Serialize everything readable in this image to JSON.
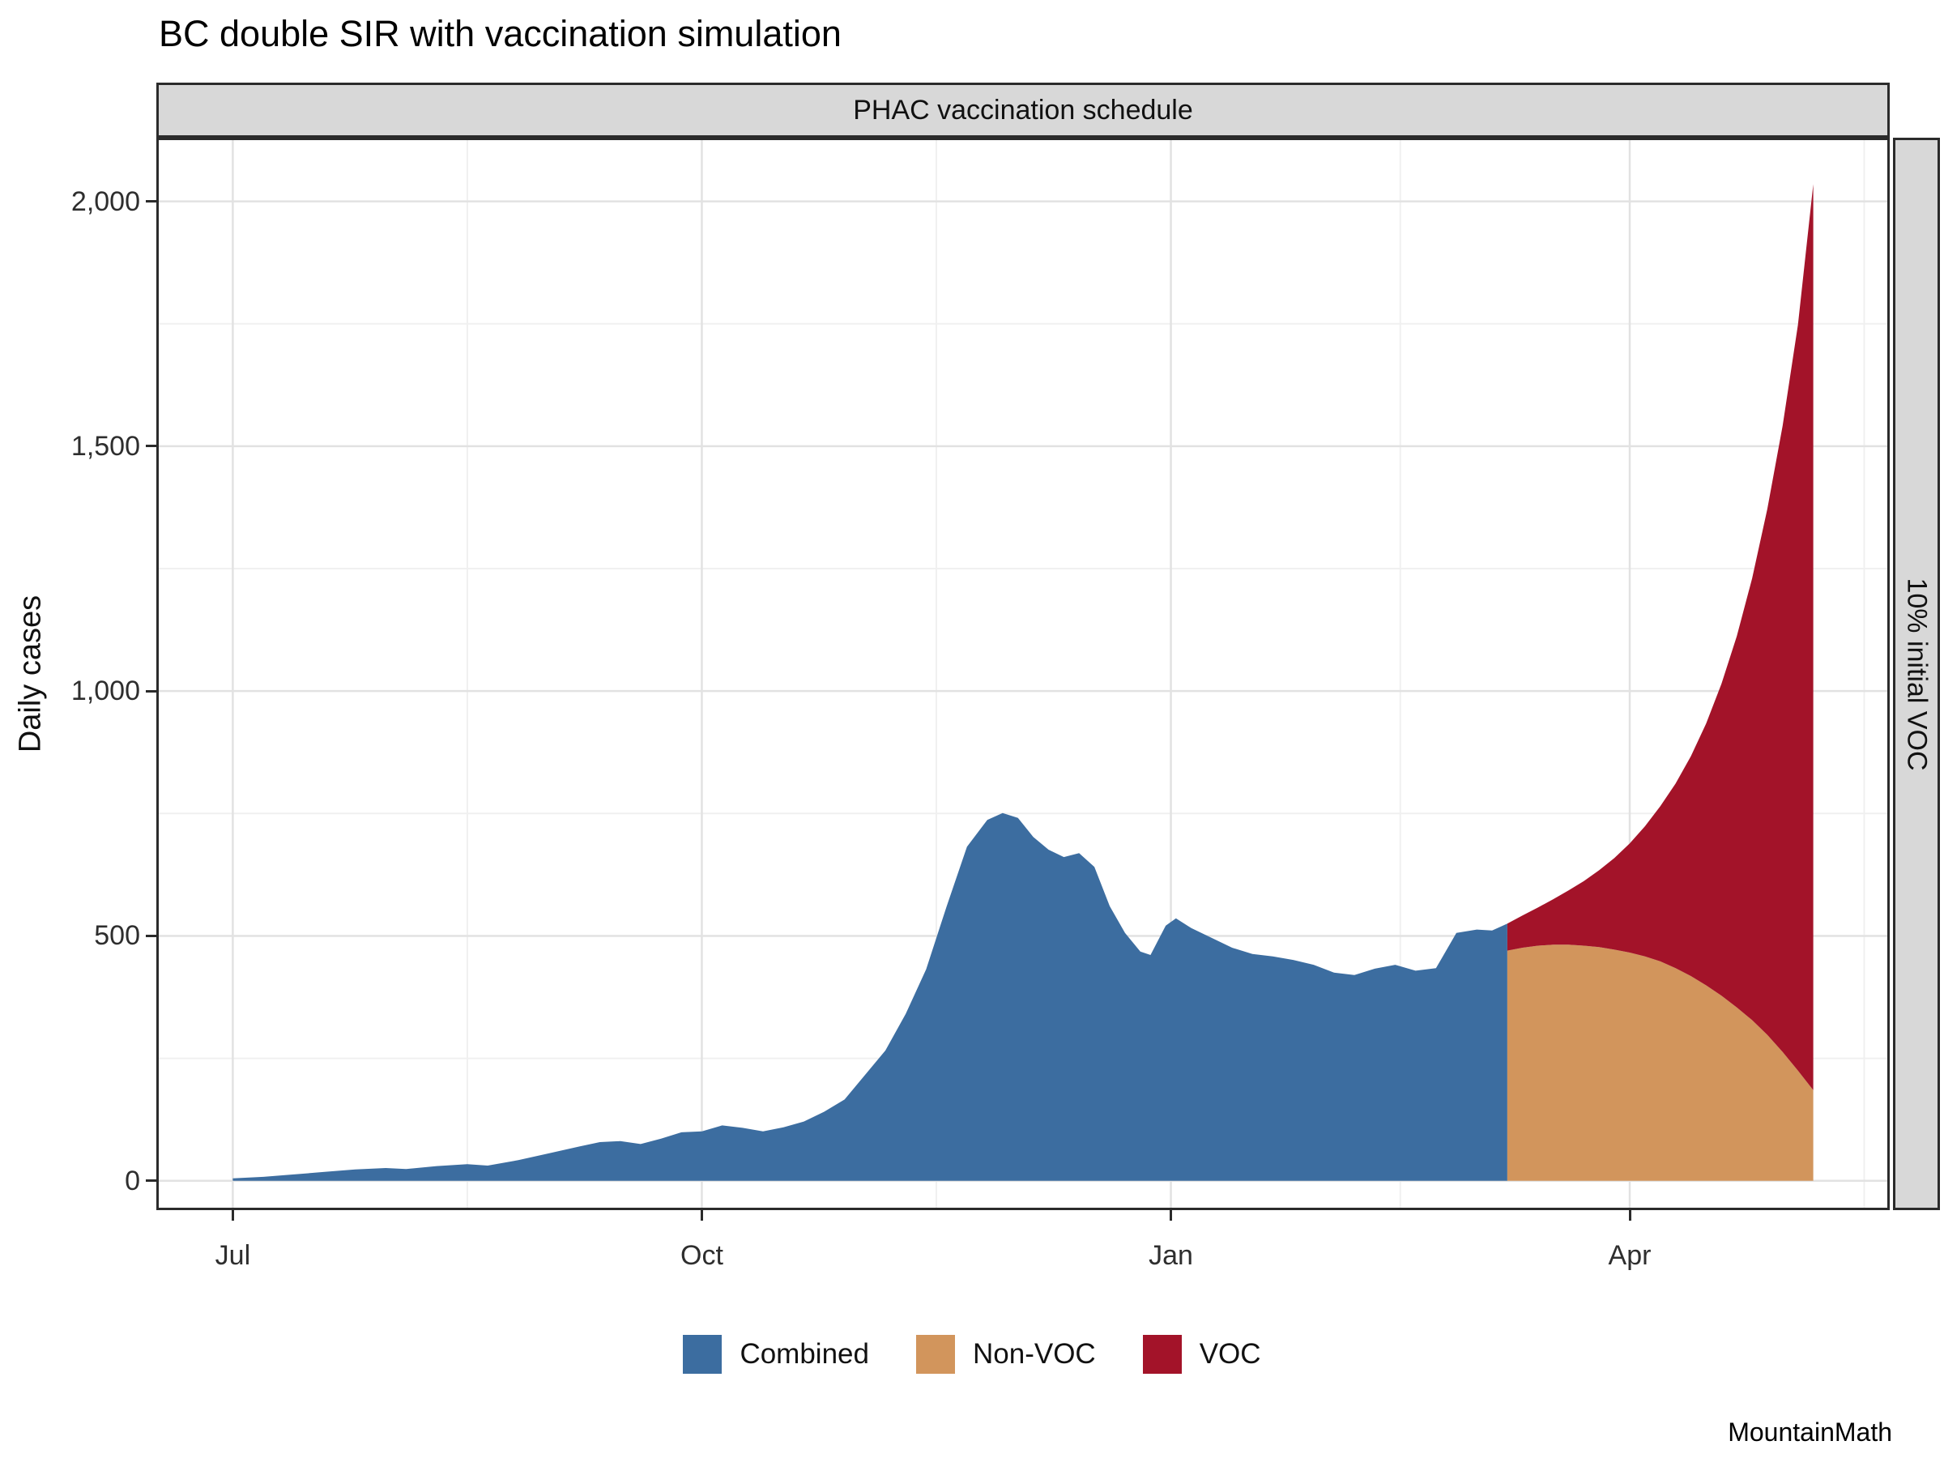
{
  "title": "BC double SIR with vaccination simulation",
  "strips": {
    "top": "PHAC vaccination schedule",
    "right": "10% initial VOC"
  },
  "watermark": "MountainMath",
  "chart_data": {
    "type": "area",
    "title": "BC double SIR with vaccination simulation",
    "xlabel": "",
    "ylabel": "Daily cases",
    "x_unit": "days since Jul 1",
    "x_domain": [
      -15,
      325
    ],
    "y_domain": [
      -60,
      2130
    ],
    "grid": true,
    "legend_position": "bottom",
    "x_ticks": [
      {
        "value": 0,
        "label": "Jul"
      },
      {
        "value": 92,
        "label": "Oct"
      },
      {
        "value": 184,
        "label": "Jan"
      },
      {
        "value": 274,
        "label": "Apr"
      }
    ],
    "y_ticks": [
      {
        "value": 0,
        "label": "0"
      },
      {
        "value": 500,
        "label": "500"
      },
      {
        "value": 1000,
        "label": "1,000"
      },
      {
        "value": 1500,
        "label": "1,500"
      },
      {
        "value": 2000,
        "label": "2,000"
      }
    ],
    "x_minor": [
      46,
      138,
      229,
      320
    ],
    "y_minor": [
      250,
      750,
      1250,
      1750
    ],
    "legend": [
      {
        "name": "Combined",
        "color": "#3C6DA0"
      },
      {
        "name": "Non-VOC",
        "color": "#D2955C"
      },
      {
        "name": "VOC",
        "color": "#A31329"
      }
    ],
    "series": [
      {
        "name": "Combined",
        "color": "#3C6DA0",
        "stack": "base",
        "points": [
          [
            0,
            5
          ],
          [
            6,
            8
          ],
          [
            12,
            13
          ],
          [
            18,
            18
          ],
          [
            24,
            23
          ],
          [
            30,
            26
          ],
          [
            34,
            24
          ],
          [
            40,
            30
          ],
          [
            46,
            34
          ],
          [
            50,
            31
          ],
          [
            56,
            42
          ],
          [
            62,
            56
          ],
          [
            68,
            70
          ],
          [
            72,
            79
          ],
          [
            76,
            81
          ],
          [
            80,
            75
          ],
          [
            84,
            86
          ],
          [
            88,
            99
          ],
          [
            92,
            101
          ],
          [
            96,
            113
          ],
          [
            100,
            108
          ],
          [
            104,
            101
          ],
          [
            108,
            109
          ],
          [
            112,
            121
          ],
          [
            116,
            141
          ],
          [
            120,
            166
          ],
          [
            124,
            216
          ],
          [
            128,
            266
          ],
          [
            132,
            341
          ],
          [
            136,
            432
          ],
          [
            140,
            560
          ],
          [
            144,
            682
          ],
          [
            148,
            737
          ],
          [
            151,
            751
          ],
          [
            154,
            741
          ],
          [
            157,
            702
          ],
          [
            160,
            676
          ],
          [
            163,
            661
          ],
          [
            166,
            669
          ],
          [
            169,
            641
          ],
          [
            172,
            561
          ],
          [
            175,
            506
          ],
          [
            178,
            468
          ],
          [
            180,
            461
          ],
          [
            183,
            521
          ],
          [
            185,
            536
          ],
          [
            188,
            516
          ],
          [
            192,
            496
          ],
          [
            196,
            476
          ],
          [
            200,
            463
          ],
          [
            204,
            458
          ],
          [
            208,
            451
          ],
          [
            212,
            441
          ],
          [
            216,
            425
          ],
          [
            220,
            420
          ],
          [
            224,
            433
          ],
          [
            228,
            441
          ],
          [
            232,
            429
          ],
          [
            236,
            434
          ],
          [
            240,
            506
          ],
          [
            244,
            513
          ],
          [
            247,
            511
          ],
          [
            250,
            525
          ]
        ]
      },
      {
        "name": "Non-VOC",
        "color": "#D2955C",
        "stack": "base",
        "points": [
          [
            250,
            470
          ],
          [
            253,
            476
          ],
          [
            256,
            480
          ],
          [
            259,
            482
          ],
          [
            262,
            482
          ],
          [
            265,
            480
          ],
          [
            268,
            477
          ],
          [
            271,
            472
          ],
          [
            274,
            466
          ],
          [
            277,
            458
          ],
          [
            280,
            448
          ],
          [
            283,
            434
          ],
          [
            286,
            418
          ],
          [
            289,
            399
          ],
          [
            292,
            378
          ],
          [
            295,
            354
          ],
          [
            298,
            328
          ],
          [
            301,
            298
          ],
          [
            304,
            263
          ],
          [
            307,
            225
          ],
          [
            310,
            185
          ]
        ]
      },
      {
        "name": "VOC",
        "color": "#A31329",
        "stack": "on:Non-VOC",
        "points": [
          [
            250,
            55
          ],
          [
            253,
            66
          ],
          [
            256,
            78
          ],
          [
            259,
            93
          ],
          [
            262,
            111
          ],
          [
            265,
            132
          ],
          [
            268,
            157
          ],
          [
            271,
            187
          ],
          [
            274,
            223
          ],
          [
            277,
            266
          ],
          [
            280,
            317
          ],
          [
            283,
            377
          ],
          [
            286,
            449
          ],
          [
            289,
            535
          ],
          [
            292,
            637
          ],
          [
            295,
            758
          ],
          [
            298,
            902
          ],
          [
            301,
            1074
          ],
          [
            304,
            1279
          ],
          [
            307,
            1523
          ],
          [
            310,
            1850
          ]
        ]
      }
    ]
  }
}
